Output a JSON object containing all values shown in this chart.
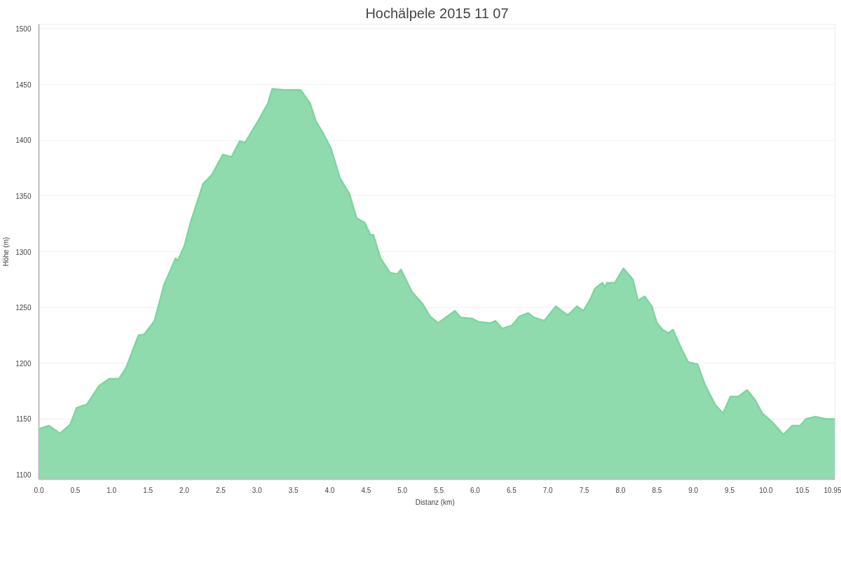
{
  "chart_data": {
    "type": "area",
    "title": "Hochälpele 2015 11 07",
    "xlabel": "Distanz   (km)",
    "ylabel": "Höhe (m)",
    "xlim": [
      0,
      10.95
    ],
    "ylim": [
      1096,
      1504
    ],
    "xticks": [
      {
        "value": 0,
        "label": "0.0"
      },
      0.5,
      {
        "value": 1,
        "label": "1.0"
      },
      1.5,
      {
        "value": 2,
        "label": "2.0"
      },
      2.5,
      {
        "value": 3,
        "label": "3.0"
      },
      3.5,
      {
        "value": 4,
        "label": "4.0"
      },
      4.5,
      {
        "value": 5,
        "label": "5.0"
      },
      5.5,
      {
        "value": 6,
        "label": "6.0"
      },
      6.5,
      {
        "value": 7,
        "label": "7.0"
      },
      7.5,
      {
        "value": 8,
        "label": "8.0"
      },
      8.5,
      {
        "value": 9,
        "label": "9.0"
      },
      9.5,
      {
        "value": 10,
        "label": "10.0"
      },
      10.5,
      10.95
    ],
    "yticks": [
      1100,
      1150,
      1200,
      1250,
      1300,
      1350,
      1400,
      1450,
      1500
    ],
    "grid": "y",
    "series": [
      {
        "color": "#8fdbae",
        "x": [
          0,
          0.14,
          0.29,
          0.43,
          0.52,
          0.66,
          0.83,
          0.97,
          1.1,
          1.2,
          1.37,
          1.45,
          1.59,
          1.72,
          1.88,
          1.91,
          2.0,
          2.09,
          2.26,
          2.38,
          2.53,
          2.65,
          2.76,
          2.84,
          2.92,
          3.04,
          3.15,
          3.21,
          3.38,
          3.6,
          3.73,
          3.81,
          3.91,
          4.02,
          4.14,
          4.27,
          4.37,
          4.48,
          4.56,
          4.6,
          4.7,
          4.83,
          4.93,
          4.98,
          5.13,
          5.28,
          5.38,
          5.49,
          5.72,
          5.8,
          5.96,
          6.05,
          6.21,
          6.28,
          6.37,
          6.51,
          6.61,
          6.73,
          6.81,
          6.95,
          7.11,
          7.27,
          7.4,
          7.49,
          7.58,
          7.65,
          7.75,
          7.79,
          7.81,
          7.92,
          8.04,
          8.17,
          8.24,
          8.33,
          8.43,
          8.5,
          8.58,
          8.66,
          8.72,
          8.83,
          8.93,
          9.06,
          9.16,
          9.3,
          9.41,
          9.51,
          9.62,
          9.74,
          9.85,
          9.95,
          10.09,
          10.24,
          10.36,
          10.47,
          10.55,
          10.68,
          10.82,
          10.95
        ],
        "values": [
          1141,
          1144,
          1137,
          1145,
          1160,
          1163,
          1180,
          1186,
          1186,
          1196,
          1225,
          1226,
          1238,
          1270,
          1294,
          1292,
          1305,
          1327,
          1361,
          1369,
          1387,
          1385,
          1399,
          1398,
          1407,
          1420,
          1433,
          1446,
          1445,
          1445,
          1433,
          1417,
          1406,
          1392,
          1366,
          1352,
          1330,
          1326,
          1315,
          1315,
          1294,
          1281,
          1280,
          1284,
          1264,
          1253,
          1242,
          1236,
          1247,
          1241,
          1240,
          1237,
          1236,
          1238,
          1231,
          1234,
          1242,
          1245,
          1241,
          1238,
          1251,
          1243,
          1251,
          1247,
          1257,
          1267,
          1272,
          1268,
          1272,
          1272,
          1285,
          1275,
          1256,
          1260,
          1251,
          1236,
          1230,
          1227,
          1230,
          1214,
          1201,
          1199,
          1181,
          1163,
          1155,
          1170,
          1170,
          1176,
          1167,
          1155,
          1147,
          1136,
          1144,
          1144,
          1150,
          1152,
          1150,
          1150
        ]
      }
    ]
  }
}
